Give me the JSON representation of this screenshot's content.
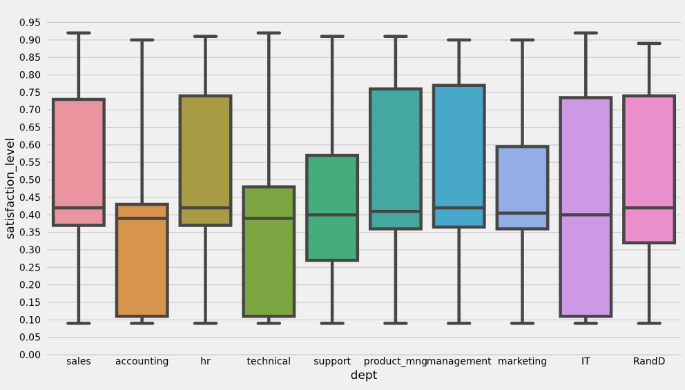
{
  "chart_data": {
    "type": "box",
    "xlabel": "dept",
    "ylabel": "satisfaction_level",
    "ylim": [
      0.0,
      0.95
    ],
    "yticks": [
      0.0,
      0.05,
      0.1,
      0.15,
      0.2,
      0.25,
      0.3,
      0.35,
      0.4,
      0.45,
      0.5,
      0.55,
      0.6,
      0.65,
      0.7,
      0.75,
      0.8,
      0.85,
      0.9,
      0.95
    ],
    "grid": "horizontal",
    "categories": [
      "sales",
      "accounting",
      "hr",
      "technical",
      "support",
      "product_mng",
      "management",
      "marketing",
      "IT",
      "RandD"
    ],
    "boxes": [
      {
        "category": "sales",
        "whisker_low": 0.09,
        "q1": 0.37,
        "median": 0.42,
        "q3": 0.73,
        "whisker_high": 0.92,
        "color": "#e9949f"
      },
      {
        "category": "accounting",
        "whisker_low": 0.09,
        "q1": 0.11,
        "median": 0.39,
        "q3": 0.43,
        "whisker_high": 0.9,
        "color": "#d6944c"
      },
      {
        "category": "hr",
        "whisker_low": 0.09,
        "q1": 0.37,
        "median": 0.42,
        "q3": 0.74,
        "whisker_high": 0.91,
        "color": "#a89c45"
      },
      {
        "category": "technical",
        "whisker_low": 0.09,
        "q1": 0.11,
        "median": 0.39,
        "q3": 0.48,
        "whisker_high": 0.92,
        "color": "#7da642"
      },
      {
        "category": "support",
        "whisker_low": 0.09,
        "q1": 0.27,
        "median": 0.4,
        "q3": 0.57,
        "whisker_high": 0.91,
        "color": "#45ac7b"
      },
      {
        "category": "product_mng",
        "whisker_low": 0.09,
        "q1": 0.36,
        "median": 0.41,
        "q3": 0.76,
        "whisker_high": 0.91,
        "color": "#44a8a0"
      },
      {
        "category": "management",
        "whisker_low": 0.09,
        "q1": 0.365,
        "median": 0.42,
        "q3": 0.77,
        "whisker_high": 0.9,
        "color": "#47a8c9"
      },
      {
        "category": "marketing",
        "whisker_low": 0.09,
        "q1": 0.36,
        "median": 0.405,
        "q3": 0.595,
        "whisker_high": 0.9,
        "color": "#93ade6"
      },
      {
        "category": "IT",
        "whisker_low": 0.09,
        "q1": 0.11,
        "median": 0.4,
        "q3": 0.735,
        "whisker_high": 0.92,
        "color": "#cd99e4"
      },
      {
        "category": "RandD",
        "whisker_low": 0.09,
        "q1": 0.32,
        "median": 0.42,
        "q3": 0.74,
        "whisker_high": 0.89,
        "color": "#e98fcb"
      }
    ]
  }
}
